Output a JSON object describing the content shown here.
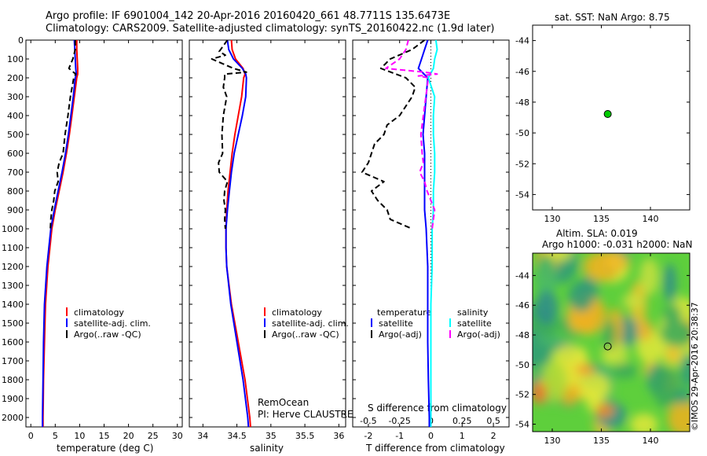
{
  "header": {
    "line1": "Argo profile: IF 6901004_142 20-Apr-2016 20160420_661 48.7711S 135.6473E",
    "line2": "Climatology: CARS2009. Satellite-adjusted climatology: synTS_20160422.nc (1.9d later)"
  },
  "colors": {
    "climatology": "#ff0000",
    "satellite": "#0000ff",
    "argo": "#000000",
    "satellite_salinity": "#00ffff",
    "argo_salinity": "#ff00ff",
    "marker": "#00cc00"
  },
  "credit": "©IMOS 29-Apr-2016 20:38:37",
  "institution": {
    "line1": "RemOcean",
    "line2": "PI: Herve CLAUSTRE"
  },
  "legend_main": {
    "climatology": "climatology",
    "satellite": "satellite-adj. clim.",
    "argo": "Argo(..raw -QC)"
  },
  "legend_diff": {
    "temperature_head": "temperature",
    "salinity_head": "salinity",
    "satellite": "satellite",
    "argo": "Argo(-adj)"
  },
  "chart_data": [
    {
      "type": "line",
      "id": "temperature",
      "xlabel": "temperature (deg C)",
      "xlim": [
        -1,
        31
      ],
      "xticks": [
        0,
        5,
        10,
        15,
        20,
        25,
        30
      ],
      "ylim": [
        0,
        2050
      ],
      "yticks": [
        0,
        100,
        200,
        300,
        400,
        500,
        600,
        700,
        800,
        900,
        1000,
        1100,
        1200,
        1300,
        1400,
        1500,
        1600,
        1700,
        1800,
        1900,
        2000
      ],
      "series": [
        {
          "name": "climatology",
          "y": [
            0,
            50,
            100,
            150,
            180,
            200,
            300,
            400,
            500,
            600,
            700,
            800,
            900,
            1000,
            1200,
            1400,
            1600,
            1800,
            2000,
            2050
          ],
          "x": [
            9.4,
            9.4,
            9.5,
            9.6,
            9.6,
            9.4,
            8.9,
            8.4,
            7.9,
            7.3,
            6.6,
            5.8,
            5.0,
            4.3,
            3.5,
            3.0,
            2.8,
            2.6,
            2.5,
            2.5
          ]
        },
        {
          "name": "satellite-adj. clim.",
          "y": [
            0,
            50,
            100,
            150,
            180,
            200,
            300,
            400,
            500,
            600,
            700,
            800,
            900,
            1000,
            1200,
            1400,
            1600,
            1800,
            2000,
            2050
          ],
          "x": [
            8.9,
            9.0,
            9.1,
            9.2,
            9.3,
            9.1,
            8.7,
            8.2,
            7.7,
            7.1,
            6.4,
            5.6,
            4.8,
            4.1,
            3.3,
            2.8,
            2.6,
            2.5,
            2.4,
            2.4
          ]
        },
        {
          "name": "Argo(..raw -QC)",
          "y": [
            0,
            50,
            100,
            150,
            180,
            200,
            300,
            400,
            500,
            600,
            650,
            700,
            750,
            800,
            850,
            900,
            950,
            1000
          ],
          "x": [
            9.1,
            9.1,
            8.6,
            7.8,
            9.2,
            8.8,
            8.1,
            7.6,
            7.0,
            6.6,
            5.8,
            5.4,
            5.6,
            4.9,
            4.7,
            4.3,
            4.1,
            4.0
          ]
        }
      ]
    },
    {
      "type": "line",
      "id": "salinity",
      "xlabel": "salinity",
      "xlim": [
        33.8,
        36.1
      ],
      "xticks": [
        34,
        34.5,
        35,
        35.5,
        36
      ],
      "ylim": [
        0,
        2050
      ],
      "series": [
        {
          "name": "climatology",
          "y": [
            0,
            50,
            100,
            150,
            180,
            200,
            300,
            400,
            500,
            600,
            700,
            800,
            900,
            1000,
            1100,
            1200,
            1400,
            1600,
            1800,
            2000,
            2050
          ],
          "x": [
            34.42,
            34.43,
            34.48,
            34.59,
            34.62,
            34.6,
            34.57,
            34.52,
            34.47,
            34.43,
            34.4,
            34.37,
            34.35,
            34.34,
            34.34,
            34.35,
            34.42,
            34.52,
            34.62,
            34.69,
            34.7
          ]
        },
        {
          "name": "satellite-adj. clim.",
          "y": [
            0,
            50,
            100,
            150,
            180,
            200,
            300,
            400,
            500,
            600,
            700,
            800,
            900,
            1000,
            1100,
            1200,
            1400,
            1600,
            1800,
            2000,
            2050
          ],
          "x": [
            34.36,
            34.38,
            34.45,
            34.58,
            34.63,
            34.64,
            34.63,
            34.58,
            34.52,
            34.46,
            34.42,
            34.39,
            34.36,
            34.34,
            34.34,
            34.35,
            34.41,
            34.5,
            34.59,
            34.66,
            34.67
          ]
        },
        {
          "name": "Argo(..raw -QC)",
          "y": [
            0,
            30,
            60,
            80,
            100,
            150,
            170,
            180,
            200,
            250,
            300,
            400,
            500,
            600,
            650,
            700,
            750,
            800,
            850,
            900,
            950,
            1000
          ],
          "x": [
            34.36,
            34.3,
            34.24,
            34.33,
            34.13,
            34.45,
            34.64,
            34.32,
            34.32,
            34.3,
            34.35,
            34.3,
            34.28,
            34.29,
            34.23,
            34.24,
            34.36,
            34.32,
            34.31,
            34.33,
            34.32,
            34.33
          ]
        }
      ]
    },
    {
      "type": "line",
      "id": "difference",
      "xlabel": "T difference from climatology",
      "xlabel_top": "S difference from climatology",
      "xlim": [
        -2.5,
        2.5
      ],
      "xticks": [
        -2,
        -1,
        0,
        1,
        2
      ],
      "xticks_top": [
        -0.5,
        -0.25,
        0,
        0.25,
        0.5
      ],
      "xticklabels_top": [
        "-0.5",
        "-0.25",
        "0",
        "0.25",
        "0.5"
      ],
      "ylim": [
        0,
        2050
      ],
      "series": [
        {
          "name": "temperature satellite",
          "y": [
            0,
            50,
            100,
            150,
            200,
            300,
            400,
            500,
            600,
            700,
            800,
            900,
            1000,
            1200,
            1400,
            1600,
            1800,
            2000,
            2050
          ],
          "x": [
            -0.1,
            -0.2,
            -0.3,
            -0.4,
            -0.1,
            -0.15,
            -0.2,
            -0.25,
            -0.2,
            -0.2,
            -0.2,
            -0.2,
            -0.15,
            -0.1,
            -0.1,
            -0.1,
            -0.08,
            -0.05,
            -0.05
          ]
        },
        {
          "name": "temperature Argo(-adj)",
          "y": [
            0,
            50,
            100,
            150,
            200,
            250,
            300,
            400,
            450,
            500,
            550,
            600,
            650,
            700,
            750,
            800,
            850,
            900,
            950,
            1000
          ],
          "x": [
            -0.2,
            -0.6,
            -1.3,
            -1.6,
            -0.8,
            -0.5,
            -0.6,
            -1.0,
            -1.4,
            -1.5,
            -1.8,
            -1.9,
            -2.0,
            -2.2,
            -1.5,
            -1.9,
            -1.7,
            -1.4,
            -1.3,
            -0.6
          ]
        },
        {
          "name": "salinity satellite",
          "y": [
            0,
            50,
            100,
            150,
            200,
            300,
            400,
            500,
            600,
            700,
            800,
            900,
            1000,
            1200,
            1400,
            1600,
            1800,
            2000,
            2050
          ],
          "x": [
            0.04,
            0.05,
            0.03,
            0.02,
            -0.02,
            0.03,
            0.02,
            0.02,
            0.03,
            0.03,
            0.02,
            0.02,
            0.01,
            0.01,
            0.0,
            0.0,
            0.0,
            0.0,
            0.0
          ]
        },
        {
          "name": "salinity Argo(-adj)",
          "y": [
            0,
            50,
            100,
            150,
            170,
            180,
            190,
            200,
            300,
            400,
            500,
            600,
            650,
            700,
            750,
            800,
            850,
            900,
            950,
            1000
          ],
          "x": [
            -0.18,
            -0.2,
            -0.25,
            -0.36,
            -0.05,
            0.05,
            -0.1,
            -0.02,
            -0.04,
            -0.06,
            -0.08,
            -0.07,
            -0.06,
            -0.09,
            -0.05,
            -0.03,
            0.0,
            0.03,
            0.02,
            0.01
          ]
        }
      ]
    },
    {
      "type": "scatter",
      "id": "sst-map",
      "title": "sat. SST: NaN Argo: 8.75",
      "xlim": [
        128,
        144
      ],
      "ylim": [
        -55,
        -43
      ],
      "xticks": [
        130,
        135,
        140
      ],
      "yticks": [
        -44,
        -46,
        -48,
        -50,
        -52,
        -54
      ],
      "points": [
        {
          "x": 135.65,
          "y": -48.77
        }
      ]
    },
    {
      "type": "heatmap",
      "id": "sla-map",
      "title1": "Altim. SLA: 0.019",
      "title2": "Argo h1000: -0.031 h2000: NaN",
      "xlim": [
        128,
        144
      ],
      "ylim": [
        -54.5,
        -42.5
      ],
      "xticks": [
        130,
        135,
        140
      ],
      "yticks": [
        -44,
        -46,
        -48,
        -50,
        -52,
        -54
      ],
      "points": [
        {
          "x": 135.65,
          "y": -48.77
        }
      ]
    }
  ]
}
